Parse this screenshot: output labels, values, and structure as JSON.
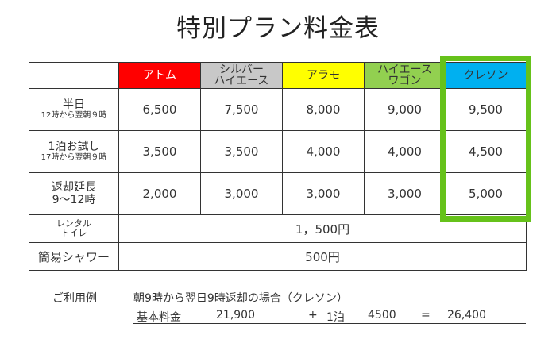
{
  "title": "特別プラン料金表",
  "table": {
    "headers": [
      {
        "lines": [
          "アトム"
        ],
        "bg": "#ff0000",
        "color": "#ffffff"
      },
      {
        "lines": [
          "シルバー",
          "ハイエース"
        ],
        "bg": "#c8c8c8",
        "color": "#333333"
      },
      {
        "lines": [
          "アラモ"
        ],
        "bg": "#ffff00",
        "color": "#333333"
      },
      {
        "lines": [
          "ハイエース",
          "ワゴン"
        ],
        "bg": "#92d050",
        "color": "#333333"
      },
      {
        "lines": [
          "クレソン"
        ],
        "bg": "#00b0f0",
        "color": "#333333"
      }
    ],
    "rows": [
      {
        "label": "半日",
        "sub": "12時から翌朝９時",
        "values": [
          "6,500",
          "7,500",
          "8,000",
          "9,000",
          "9,500"
        ]
      },
      {
        "label": "1泊お試し",
        "sub": "17時から翌朝９時",
        "values": [
          "3,500",
          "3,500",
          "4,000",
          "4,000",
          "4,500"
        ]
      },
      {
        "label": "返却延長",
        "sub": "9～12時",
        "values": [
          "2,000",
          "3,000",
          "3,000",
          "3,000",
          "5,000"
        ]
      }
    ],
    "toilet": {
      "label_lines": [
        "レンタル",
        "トイレ"
      ],
      "value": "1，500円"
    },
    "shower": {
      "label": "簡易シャワー",
      "value": "500円"
    }
  },
  "highlight_color": "#66c21a",
  "example": {
    "label": "ご利用例",
    "description": "朝9時から翌日9時返却の場合（クレソン）",
    "base_label": "基本料金",
    "base_value": "21,900",
    "plus": "+",
    "night": "1泊",
    "night_value": "4500",
    "equals": "=",
    "total": "26,400"
  }
}
